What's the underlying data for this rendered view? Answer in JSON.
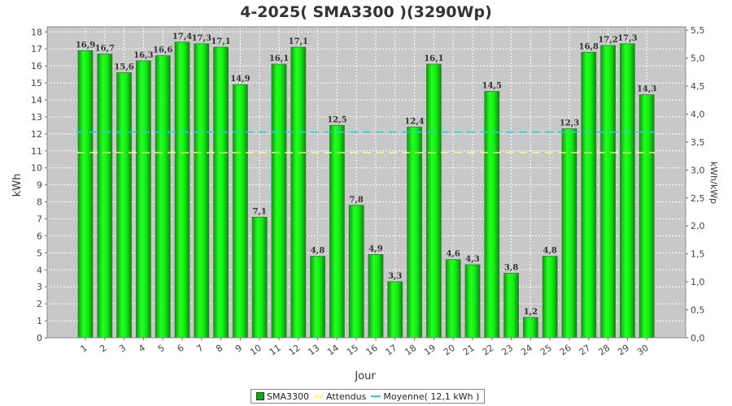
{
  "chart_data": {
    "type": "bar",
    "title": "4-2025( SMA3300 )(3290Wp)",
    "xlabel": "Jour",
    "ylabel": "kWh",
    "y2label": "kWh/kWp",
    "categories": [
      "1",
      "2",
      "3",
      "4",
      "5",
      "6",
      "7",
      "8",
      "9",
      "10",
      "11",
      "12",
      "13",
      "14",
      "15",
      "16",
      "17",
      "18",
      "19",
      "20",
      "21",
      "22",
      "23",
      "24",
      "25",
      "26",
      "27",
      "28",
      "29",
      "30"
    ],
    "series": [
      {
        "name": "SMA3300",
        "values": [
          16.9,
          16.7,
          15.6,
          16.3,
          16.6,
          17.4,
          17.3,
          17.1,
          14.9,
          7.1,
          16.1,
          17.1,
          4.8,
          12.5,
          7.8,
          4.9,
          3.3,
          12.4,
          16.1,
          4.6,
          4.3,
          14.5,
          3.8,
          1.2,
          4.8,
          12.3,
          16.8,
          17.2,
          17.3,
          14.3
        ]
      }
    ],
    "data_labels": [
      "16,9",
      "16,7",
      "15,6",
      "16,3",
      "16,6",
      "17,4",
      "17,3",
      "17,1",
      "14,9",
      "7,1",
      "16,1",
      "17,1",
      "4,8",
      "12,5",
      "7,8",
      "4,9",
      "3,3",
      "12,4",
      "16,1",
      "4,6",
      "4,3",
      "14,5",
      "3,8",
      "1,2",
      "4,8",
      "12,3",
      "16,8",
      "17,2",
      "17,3",
      "14,3"
    ],
    "attendus": 10.9,
    "moyenne": 12.1,
    "ylim": [
      0,
      18.3
    ],
    "yticks": [
      "0",
      "1",
      "2",
      "3",
      "4",
      "5",
      "6",
      "7",
      "8",
      "9",
      "10",
      "11",
      "12",
      "13",
      "14",
      "15",
      "16",
      "17",
      "18"
    ],
    "y2lim": [
      0,
      5.56
    ],
    "y2ticks": [
      "0,0",
      "0,5",
      "1,0",
      "1,5",
      "2,0",
      "2,5",
      "3,0",
      "3,5",
      "4,0",
      "4,5",
      "5,0",
      "5,5"
    ],
    "grid": true,
    "legend_position": "bottom",
    "colors": {
      "plot_bg": "#c8c8c8",
      "bar": "#11ee11",
      "bar_dark": "#0a8a0a",
      "attendus": "#ffff66",
      "moyenne": "#33cccc"
    }
  },
  "legend": {
    "items": [
      {
        "label": "SMA3300"
      },
      {
        "label": "Attendus"
      },
      {
        "label": "Moyenne( 12,1 kWh )"
      }
    ]
  }
}
